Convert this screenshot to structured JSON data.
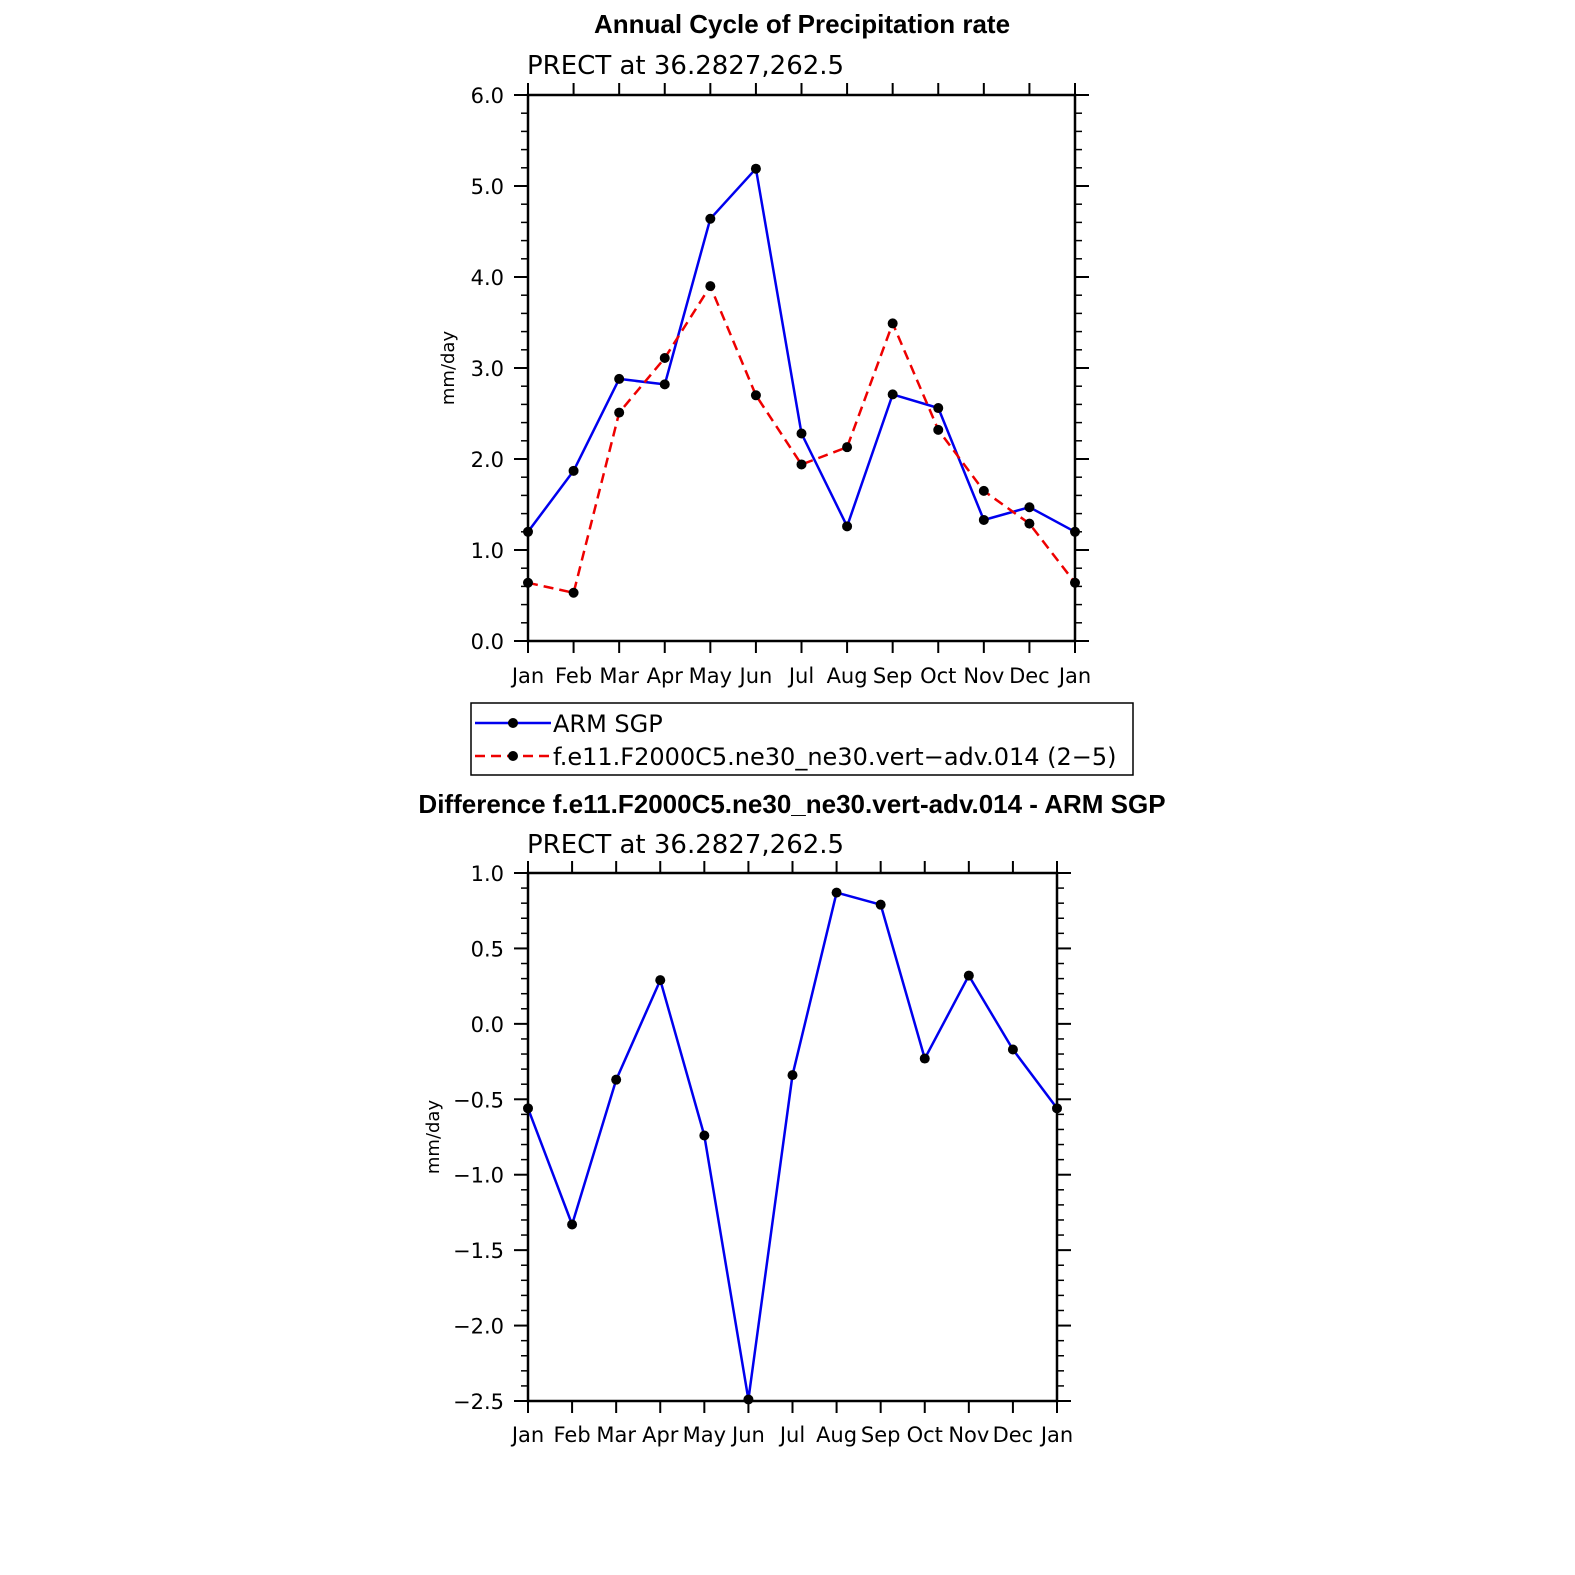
{
  "chart_data": [
    {
      "type": "line",
      "title": "Annual Cycle of Precipitation rate",
      "subtitle": "PRECT at 36.2827,262.5",
      "xlabel": "",
      "ylabel": "mm/day",
      "categories": [
        "Jan",
        "Feb",
        "Mar",
        "Apr",
        "May",
        "Jun",
        "Jul",
        "Aug",
        "Sep",
        "Oct",
        "Nov",
        "Dec",
        "Jan"
      ],
      "ylim": [
        0,
        6
      ],
      "yticks": [
        0,
        1,
        2,
        3,
        4,
        5,
        6
      ],
      "ytick_labels": [
        "0.0",
        "1.0",
        "2.0",
        "3.0",
        "4.0",
        "5.0",
        "6.0"
      ],
      "series": [
        {
          "name": "ARM SGP",
          "color": "#0000ee",
          "dash": "solid",
          "values": [
            1.2,
            1.87,
            2.88,
            2.82,
            4.64,
            5.19,
            2.28,
            1.26,
            2.71,
            2.56,
            1.33,
            1.47,
            1.2
          ]
        },
        {
          "name": "f.e11.F2000C5.ne30_ne30.vert−adv.014 (2−5)",
          "color": "#ee0000",
          "dash": "dashed",
          "values": [
            0.64,
            0.53,
            2.51,
            3.11,
            3.9,
            2.7,
            1.94,
            2.13,
            3.49,
            2.32,
            1.65,
            1.29,
            0.64
          ]
        }
      ],
      "legend": {
        "placement": "below"
      }
    },
    {
      "type": "line",
      "title": "Difference f.e11.F2000C5.ne30_ne30.vert-adv.014 - ARM SGP",
      "subtitle": "PRECT at 36.2827,262.5",
      "xlabel": "",
      "ylabel": "mm/day",
      "categories": [
        "Jan",
        "Feb",
        "Mar",
        "Apr",
        "May",
        "Jun",
        "Jul",
        "Aug",
        "Sep",
        "Oct",
        "Nov",
        "Dec",
        "Jan"
      ],
      "ylim": [
        -2.5,
        1.0
      ],
      "yticks": [
        -2.5,
        -2.0,
        -1.5,
        -1.0,
        -0.5,
        0.0,
        0.5,
        1.0
      ],
      "ytick_labels": [
        "−2.5",
        "−2.0",
        "−1.5",
        "−1.0",
        "−0.5",
        "0.0",
        "0.5",
        "1.0"
      ],
      "series": [
        {
          "name": "Difference",
          "color": "#0000ee",
          "dash": "solid",
          "values": [
            -0.56,
            -1.33,
            -0.37,
            0.29,
            -0.74,
            -2.49,
            -0.34,
            0.87,
            0.79,
            -0.23,
            0.32,
            -0.17,
            -0.56
          ]
        }
      ]
    }
  ]
}
